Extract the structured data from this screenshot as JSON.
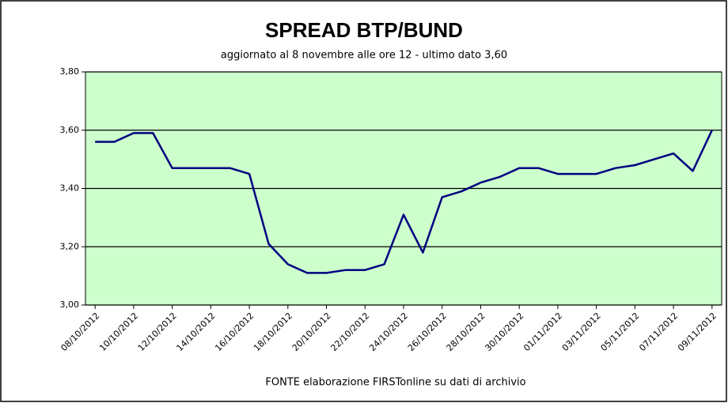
{
  "chart_data": {
    "type": "line",
    "title": "SPREAD  BTP/BUND",
    "subtitle": "aggiornato al 8 novembre alle ore 12 - ultimo dato 3,60",
    "source": "FONTE elaborazione FIRSTonline su dati di archivio",
    "categories": [
      "08/10/2012",
      null,
      "10/10/2012",
      null,
      "12/10/2012",
      null,
      "14/10/2012",
      null,
      "16/10/2012",
      null,
      "18/10/2012",
      null,
      "20/10/2012",
      null,
      "22/10/2012",
      null,
      "24/10/2012",
      null,
      "26/10/2012",
      null,
      "28/10/2012",
      null,
      "30/10/2012",
      null,
      "01/11/2012",
      null,
      "03/11/2012",
      null,
      "05/11/2012",
      null,
      "07/11/2012",
      null,
      "09/11/2012"
    ],
    "series": [
      {
        "name": "Spread",
        "color": "#000080",
        "values": [
          3.56,
          3.56,
          3.59,
          3.59,
          3.47,
          3.47,
          3.47,
          3.47,
          3.45,
          3.21,
          3.14,
          3.11,
          3.11,
          3.12,
          3.12,
          3.14,
          3.31,
          3.18,
          3.37,
          3.39,
          3.42,
          3.44,
          3.47,
          3.47,
          3.45,
          3.45,
          3.45,
          3.47,
          3.48,
          3.5,
          3.52,
          3.46,
          3.6
        ]
      }
    ],
    "ylim": [
      3,
      3.8
    ],
    "yticks": [
      {
        "value": 3,
        "label": "3,00"
      },
      {
        "value": 3.2,
        "label": "3,20"
      },
      {
        "value": 3.4,
        "label": "3,40"
      },
      {
        "value": 3.6,
        "label": "3,60"
      },
      {
        "value": 3.8,
        "label": "3,80"
      }
    ],
    "grid": true,
    "plot_color": "#ccffcc"
  }
}
